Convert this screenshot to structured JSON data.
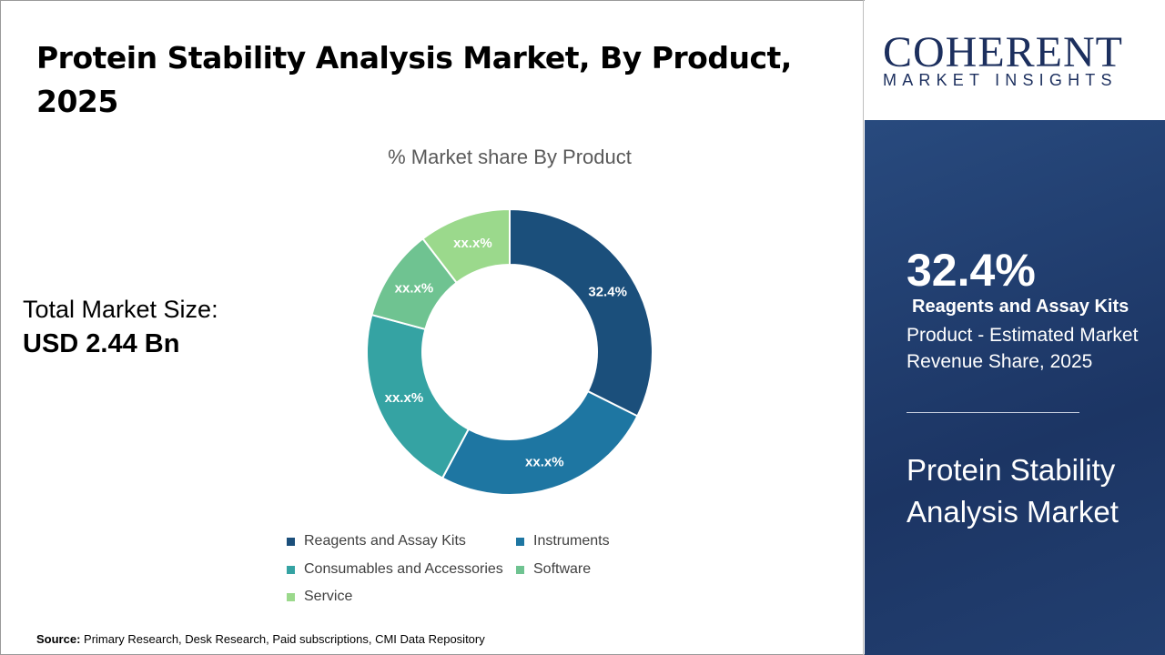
{
  "title": "Protein Stability Analysis Market, By Product, 2025",
  "total_market": {
    "label": "Total Market Size:",
    "value": "USD 2.44 Bn"
  },
  "source": {
    "label": "Source:",
    "text": "Primary Research, Desk Research, Paid subscriptions, CMI Data Repository"
  },
  "logo": {
    "name": "COHERENT",
    "tagline": "MARKET INSIGHTS"
  },
  "highlight": {
    "value": "32.4%",
    "segment": "Reagents and Assay Kits",
    "description": "Product - Estimated Market Revenue Share, 2025",
    "market_name": "Protein Stability Analysis Market"
  },
  "chart_data": {
    "type": "pie",
    "donut": true,
    "title": "% Market share By Product",
    "categories": [
      "Reagents and Assay Kits",
      "Instruments",
      "Consumables and Accessories",
      "Software",
      "Service"
    ],
    "values": [
      32.4,
      25.4,
      21.4,
      10.4,
      10.4
    ],
    "labels": [
      "32.4%",
      "xx.x%",
      "xx.x%",
      "xx.x%",
      "xx.x%"
    ],
    "colors": [
      "#1b4f7b",
      "#1e76a2",
      "#35a3a3",
      "#6fc391",
      "#9bd98c"
    ],
    "legend_position": "bottom"
  }
}
